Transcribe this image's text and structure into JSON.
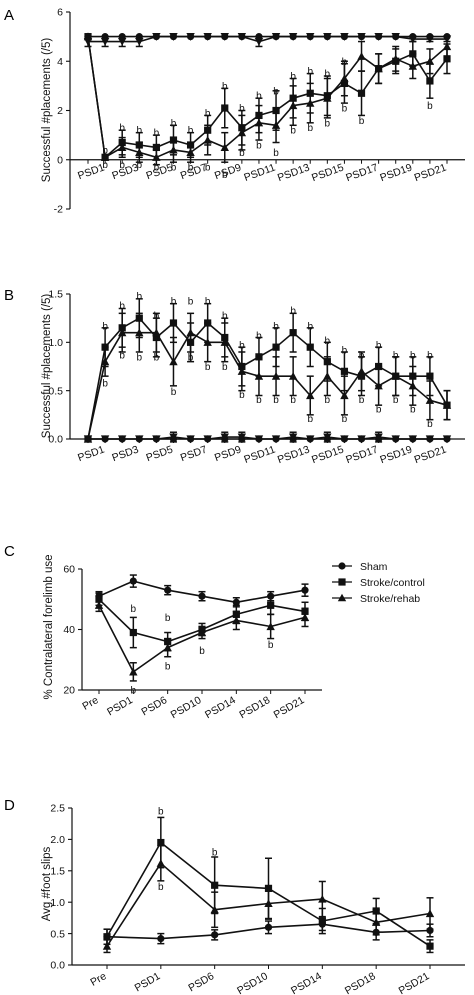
{
  "chart_data": [
    {
      "panel": "A",
      "type": "line",
      "title": "",
      "xlabel": "",
      "ylabel": "Successful #placements (/5)",
      "ylim": [
        -2,
        6
      ],
      "yticks": [
        "-2",
        "0",
        "2",
        "4",
        "6"
      ],
      "x_tick_labels": [
        "PSD1",
        "PSD3",
        "PSD5",
        "PSD7",
        "PSD9",
        "PSD11",
        "PSD13",
        "PSD15",
        "PSD17",
        "PSD19",
        "PSD21"
      ],
      "x": [
        0,
        1,
        2,
        3,
        4,
        5,
        6,
        7,
        8,
        9,
        10,
        11,
        12,
        13,
        14,
        15,
        16,
        17,
        18,
        19,
        20,
        21
      ],
      "series": [
        {
          "marker": "circle",
          "values": [
            5,
            5,
            5,
            5,
            5,
            5,
            5,
            5,
            5,
            5,
            5,
            5,
            5,
            5,
            5,
            5,
            5,
            5,
            5,
            5,
            5,
            5
          ],
          "errors": [
            0,
            0,
            0,
            0,
            0,
            0,
            0,
            0,
            0,
            0,
            0,
            0,
            0,
            0,
            0,
            0,
            0,
            0,
            0,
            0,
            0,
            0
          ]
        },
        {
          "marker": "square",
          "values": [
            5,
            0.1,
            0.7,
            0.6,
            0.5,
            0.8,
            0.6,
            1.2,
            2.1,
            1.3,
            1.8,
            2.0,
            2.5,
            2.7,
            2.6,
            3.1,
            2.7,
            3.7,
            4.0,
            4.3,
            3.2,
            4.1
          ],
          "errors": [
            0,
            0.1,
            0.5,
            0.5,
            0.5,
            0.6,
            0.5,
            0.6,
            0.8,
            0.7,
            0.7,
            0.8,
            0.8,
            0.8,
            0.8,
            0.8,
            0.9,
            0.6,
            0.5,
            0.5,
            0.7,
            0.6
          ]
        },
        {
          "marker": "triangle",
          "values": [
            5,
            0.1,
            0.5,
            0.3,
            0.1,
            0.4,
            0.3,
            0.8,
            0.5,
            1.1,
            1.5,
            1.4,
            2.2,
            2.3,
            2.5,
            3.3,
            4.2,
            3.7,
            4.1,
            3.8,
            4.0,
            4.6
          ],
          "errors": [
            0,
            0.1,
            0.4,
            0.4,
            0.3,
            0.5,
            0.4,
            0.6,
            0.6,
            0.7,
            0.7,
            0.7,
            0.8,
            0.8,
            0.8,
            0.7,
            0.6,
            0.6,
            0.5,
            0.5,
            0.5,
            0.4
          ]
        },
        {
          "marker": "triangle-down",
          "values": [
            4.8,
            4.8,
            4.8,
            4.8,
            5,
            5,
            5,
            5,
            5,
            5,
            4.8,
            5,
            5,
            5,
            5,
            5,
            5,
            5,
            5,
            4.9,
            4.9,
            4.9
          ],
          "errors": [
            0.2,
            0.2,
            0.2,
            0.2,
            0,
            0,
            0,
            0,
            0,
            0,
            0.2,
            0,
            0,
            0,
            0,
            0,
            0,
            0,
            0,
            0.1,
            0.1,
            0.1
          ]
        }
      ],
      "annotations": [
        {
          "text": "b",
          "x": 1,
          "y": 0.4
        },
        {
          "text": "b",
          "x": 1,
          "y": -0.2
        },
        {
          "text": "b",
          "x": 2,
          "y": 1.3
        },
        {
          "text": "b",
          "x": 2,
          "y": -0.2
        },
        {
          "text": "b",
          "x": 3,
          "y": 1.2
        },
        {
          "text": "b",
          "x": 3,
          "y": -0.2
        },
        {
          "text": "b",
          "x": 4,
          "y": 1.1
        },
        {
          "text": "b",
          "x": 4,
          "y": -0.3
        },
        {
          "text": "b",
          "x": 5,
          "y": 1.5
        },
        {
          "text": "b",
          "x": 5,
          "y": -0.3
        },
        {
          "text": "b",
          "x": 6,
          "y": 1.2
        },
        {
          "text": "b",
          "x": 6,
          "y": -0.3
        },
        {
          "text": "b",
          "x": 7,
          "y": 1.9
        },
        {
          "text": "b",
          "x": 7,
          "y": -0.3
        },
        {
          "text": "b",
          "x": 8,
          "y": 3.0
        },
        {
          "text": "b",
          "x": 8,
          "y": -0.6
        },
        {
          "text": "b",
          "x": 9,
          "y": 2.1
        },
        {
          "text": "b",
          "x": 9,
          "y": 0.3
        },
        {
          "text": "b",
          "x": 10,
          "y": 2.6
        },
        {
          "text": "b",
          "x": 10,
          "y": 0.6
        },
        {
          "text": "b",
          "x": 11,
          "y": 2.8
        },
        {
          "text": "b",
          "x": 11,
          "y": 0.3
        },
        {
          "text": "b",
          "x": 12,
          "y": 3.4
        },
        {
          "text": "b",
          "x": 12,
          "y": 1.2
        },
        {
          "text": "b",
          "x": 13,
          "y": 3.6
        },
        {
          "text": "b",
          "x": 13,
          "y": 1.3
        },
        {
          "text": "b",
          "x": 14,
          "y": 3.5
        },
        {
          "text": "b",
          "x": 14,
          "y": 1.5
        },
        {
          "text": "b",
          "x": 15,
          "y": 4.0
        },
        {
          "text": "b",
          "x": 15,
          "y": 2.1
        },
        {
          "text": "b",
          "x": 16,
          "y": 1.6
        },
        {
          "text": "b",
          "x": 20,
          "y": 2.2
        }
      ]
    },
    {
      "panel": "B",
      "type": "line",
      "title": "",
      "xlabel": "",
      "ylabel": "Successful #placements (/5)",
      "ylim": [
        0,
        1.5
      ],
      "yticks": [
        "0.0",
        "0.5",
        "1.0",
        "1.5"
      ],
      "x_tick_labels": [
        "PSD1",
        "PSD3",
        "PSD5",
        "PSD7",
        "PSD9",
        "PSD11",
        "PSD13",
        "PSD15",
        "PSD17",
        "PSD19",
        "PSD21"
      ],
      "x": [
        0,
        1,
        2,
        3,
        4,
        5,
        6,
        7,
        8,
        9,
        10,
        11,
        12,
        13,
        14,
        15,
        16,
        17,
        18,
        19,
        20,
        21
      ],
      "series": [
        {
          "marker": "circle",
          "values": [
            0,
            0,
            0,
            0,
            0,
            0,
            0,
            0,
            0,
            0,
            0,
            0,
            0,
            0,
            0,
            0,
            0,
            0,
            0,
            0,
            0,
            0
          ],
          "errors": [
            0,
            0,
            0,
            0,
            0,
            0,
            0,
            0,
            0,
            0,
            0,
            0,
            0,
            0,
            0,
            0,
            0,
            0,
            0,
            0,
            0,
            0
          ]
        },
        {
          "marker": "square",
          "values": [
            0,
            0.95,
            1.15,
            1.25,
            1.05,
            1.2,
            1.0,
            1.2,
            1.05,
            0.75,
            0.85,
            0.95,
            1.1,
            0.95,
            0.8,
            0.7,
            0.65,
            0.75,
            0.65,
            0.65,
            0.65,
            0.35
          ],
          "errors": [
            0,
            0.2,
            0.2,
            0.2,
            0.2,
            0.2,
            0.2,
            0.2,
            0.2,
            0.2,
            0.2,
            0.2,
            0.2,
            0.2,
            0.2,
            0.2,
            0.2,
            0.2,
            0.2,
            0.2,
            0.2,
            0.15
          ]
        },
        {
          "marker": "triangle",
          "values": [
            0,
            0.8,
            1.1,
            1.1,
            1.1,
            0.8,
            1.1,
            1.0,
            1.0,
            0.7,
            0.65,
            0.65,
            0.65,
            0.45,
            0.65,
            0.45,
            0.7,
            0.55,
            0.65,
            0.55,
            0.4,
            0.35
          ],
          "errors": [
            0,
            0.15,
            0.2,
            0.2,
            0.2,
            0.25,
            0.2,
            0.2,
            0.2,
            0.2,
            0.2,
            0.2,
            0.2,
            0.2,
            0.2,
            0.2,
            0.2,
            0.2,
            0.2,
            0.2,
            0.2,
            0.15
          ]
        },
        {
          "marker": "triangle-down",
          "values": [
            0,
            0,
            0,
            0,
            0,
            0.02,
            0,
            0,
            0.02,
            0.02,
            0,
            0,
            0.02,
            0,
            0.02,
            0,
            0,
            0.02,
            0,
            0,
            0,
            0
          ],
          "errors": [
            0,
            0,
            0,
            0,
            0,
            0.05,
            0,
            0,
            0.05,
            0.05,
            0,
            0,
            0.05,
            0,
            0.05,
            0,
            0,
            0.05,
            0,
            0,
            0,
            0
          ]
        }
      ],
      "annotations": [
        {
          "text": "b",
          "x": 1,
          "y": 1.17
        },
        {
          "text": "b",
          "x": 1,
          "y": 0.58
        },
        {
          "text": "b",
          "x": 2,
          "y": 1.38
        },
        {
          "text": "b",
          "x": 2,
          "y": 0.87
        },
        {
          "text": "b",
          "x": 3,
          "y": 1.48
        },
        {
          "text": "b",
          "x": 3,
          "y": 0.85
        },
        {
          "text": "b",
          "x": 4,
          "y": 1.28
        },
        {
          "text": "b",
          "x": 4,
          "y": 0.85
        },
        {
          "text": "b",
          "x": 5,
          "y": 1.43
        },
        {
          "text": "b",
          "x": 5,
          "y": 0.49
        },
        {
          "text": "b",
          "x": 6,
          "y": 1.43
        },
        {
          "text": "b",
          "x": 6,
          "y": 0.85
        },
        {
          "text": "b",
          "x": 7,
          "y": 1.43
        },
        {
          "text": "b",
          "x": 7,
          "y": 0.75
        },
        {
          "text": "b",
          "x": 8,
          "y": 1.28
        },
        {
          "text": "b",
          "x": 8,
          "y": 0.75
        },
        {
          "text": "b",
          "x": 9,
          "y": 0.97
        },
        {
          "text": "b",
          "x": 9,
          "y": 0.46
        },
        {
          "text": "b",
          "x": 10,
          "y": 1.07
        },
        {
          "text": "b",
          "x": 10,
          "y": 0.41
        },
        {
          "text": "b",
          "x": 11,
          "y": 1.17
        },
        {
          "text": "b",
          "x": 11,
          "y": 0.41
        },
        {
          "text": "b",
          "x": 12,
          "y": 1.33
        },
        {
          "text": "b",
          "x": 12,
          "y": 0.41
        },
        {
          "text": "b",
          "x": 13,
          "y": 1.17
        },
        {
          "text": "b",
          "x": 13,
          "y": 0.21
        },
        {
          "text": "b",
          "x": 14,
          "y": 1.02
        },
        {
          "text": "b",
          "x": 14,
          "y": 0.41
        },
        {
          "text": "b",
          "x": 15,
          "y": 0.92
        },
        {
          "text": "b",
          "x": 15,
          "y": 0.21
        },
        {
          "text": "b",
          "x": 16,
          "y": 0.87
        },
        {
          "text": "b",
          "x": 16,
          "y": 0.41
        },
        {
          "text": "b",
          "x": 17,
          "y": 0.97
        },
        {
          "text": "b",
          "x": 17,
          "y": 0.31
        },
        {
          "text": "b",
          "x": 18,
          "y": 0.87
        },
        {
          "text": "b",
          "x": 18,
          "y": 0.41
        },
        {
          "text": "b",
          "x": 19,
          "y": 0.87
        },
        {
          "text": "b",
          "x": 19,
          "y": 0.31
        },
        {
          "text": "b",
          "x": 20,
          "y": 0.87
        },
        {
          "text": "b",
          "x": 20,
          "y": 0.16
        }
      ]
    },
    {
      "panel": "C",
      "type": "line",
      "title": "",
      "xlabel": "",
      "ylabel": "% Contralateral forelimb use",
      "ylim": [
        20,
        60
      ],
      "yticks": [
        "20",
        "40",
        "60"
      ],
      "categories": [
        "Pre",
        "PSD1",
        "PSD6",
        "PSD10",
        "PSD14",
        "PSD18",
        "PSD21"
      ],
      "legend_placement": "right",
      "series": [
        {
          "name": "Sham",
          "marker": "circle",
          "values": [
            51,
            56,
            53,
            51,
            49,
            51,
            53
          ],
          "errors": [
            1.5,
            2,
            1.5,
            1.5,
            1.5,
            1.5,
            2
          ]
        },
        {
          "name": "Stroke/control",
          "marker": "square",
          "values": [
            50,
            39,
            36,
            40,
            45,
            48,
            46
          ],
          "errors": [
            2,
            5,
            3,
            2,
            3,
            3,
            3
          ]
        },
        {
          "name": "Stroke/rehab",
          "marker": "triangle",
          "values": [
            48,
            26,
            34,
            39,
            43,
            41,
            44
          ],
          "errors": [
            2,
            3,
            3,
            2,
            3,
            4,
            3
          ]
        }
      ],
      "annotations": [
        {
          "text": "b",
          "x": 1,
          "y": 47
        },
        {
          "text": "b",
          "x": 1,
          "y": 20
        },
        {
          "text": "b",
          "x": 2,
          "y": 44
        },
        {
          "text": "b",
          "x": 2,
          "y": 28
        },
        {
          "text": "b",
          "x": 3,
          "y": 33
        },
        {
          "text": "b",
          "x": 5,
          "y": 35
        }
      ]
    },
    {
      "panel": "D",
      "type": "line",
      "title": "",
      "xlabel": "",
      "ylabel": "Avg #foot slips",
      "ylim": [
        0,
        2.5
      ],
      "yticks": [
        "0.0",
        "0.5",
        "1.0",
        "1.5",
        "2.0",
        "2.5"
      ],
      "categories": [
        "Pre",
        "PSD1",
        "PSD6",
        "PSD10",
        "PSD14",
        "PSD18",
        "PSD21"
      ],
      "series": [
        {
          "marker": "circle",
          "values": [
            0.45,
            0.42,
            0.48,
            0.6,
            0.65,
            0.52,
            0.55
          ],
          "errors": [
            0.12,
            0.08,
            0.08,
            0.1,
            0.1,
            0.12,
            0.1
          ]
        },
        {
          "marker": "square",
          "values": [
            0.45,
            1.95,
            1.27,
            1.22,
            0.7,
            0.86,
            0.3
          ],
          "errors": [
            0.12,
            0.4,
            0.45,
            0.48,
            0.2,
            0.2,
            0.1
          ]
        },
        {
          "marker": "triangle",
          "values": [
            0.3,
            1.62,
            0.88,
            0.98,
            1.05,
            0.68,
            0.82
          ],
          "errors": [
            0.1,
            0.28,
            0.28,
            0.25,
            0.28,
            0.2,
            0.25
          ]
        }
      ],
      "annotations": [
        {
          "text": "b",
          "x": 1,
          "y": 2.45
        },
        {
          "text": "b",
          "x": 1,
          "y": 1.25
        },
        {
          "text": "b",
          "x": 2,
          "y": 1.8
        }
      ]
    }
  ]
}
